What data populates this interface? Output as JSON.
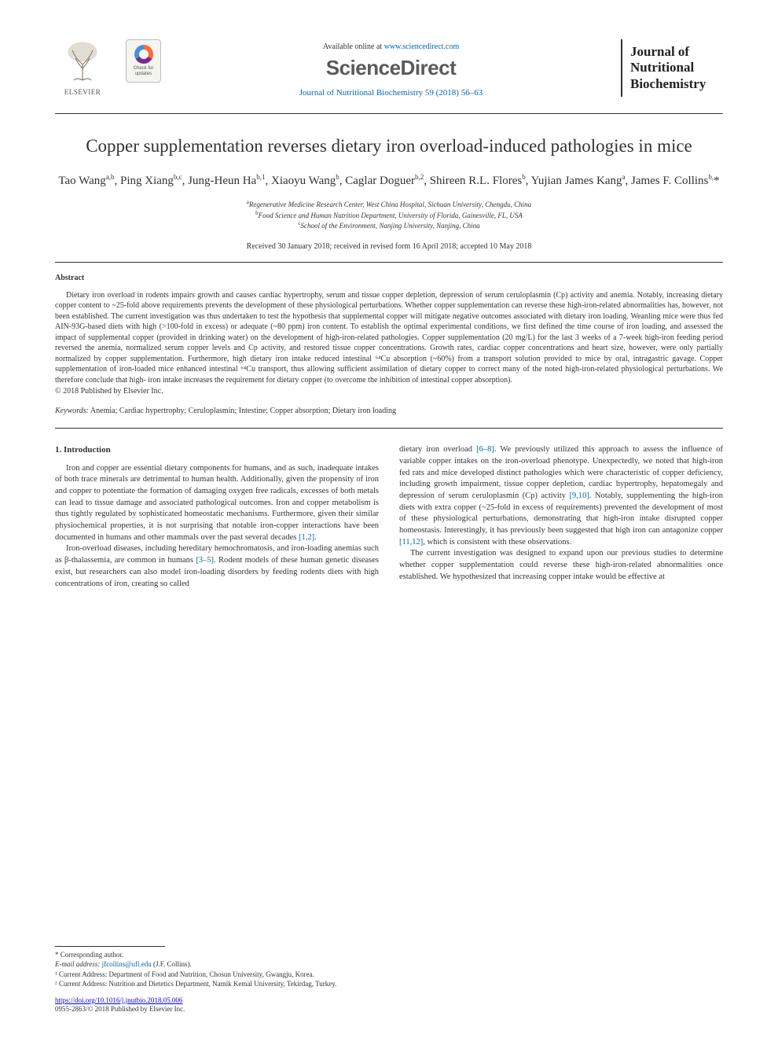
{
  "header": {
    "elsevier_label": "ELSEVIER",
    "check_updates_label": "Check for updates",
    "available_prefix": "Available online at ",
    "available_url": "www.sciencedirect.com",
    "sciencedirect_logo": "ScienceDirect",
    "journal_ref": "Journal of Nutritional Biochemistry 59 (2018) 56–63",
    "journal_box_line1": "Journal of",
    "journal_box_line2": "Nutritional",
    "journal_box_line3": "Biochemistry"
  },
  "title": "Copper supplementation reverses dietary iron overload-induced pathologies in mice",
  "authors_html": "Tao Wang<sup>a,b</sup>, Ping Xiang<sup>b,c</sup>, Jung-Heun Ha<sup>b,1</sup>, Xiaoyu Wang<sup>b</sup>, Caglar Doguer<sup>b,2</sup>, Shireen R.L. Flores<sup>b</sup>, Yujian James Kang<sup>a</sup>, James F. Collins<sup>b,</sup>*",
  "affiliations": {
    "a": "Regenerative Medicine Research Center, West China Hospital, Sichuan University, Chengdu, China",
    "b": "Food Science and Human Nutrition Department, University of Florida, Gainesville, FL, USA",
    "c": "School of the Environment, Nanjing University, Nanjing, China"
  },
  "dates": "Received 30 January 2018; received in revised form 16 April 2018; accepted 10 May 2018",
  "abstract": {
    "label": "Abstract",
    "text": "Dietary iron overload in rodents impairs growth and causes cardiac hypertrophy, serum and tissue copper depletion, depression of serum ceruloplasmin (Cp) activity and anemia. Notably, increasing dietary copper content to ~25-fold above requirements prevents the development of these physiological perturbations. Whether copper supplementation can reverse these high-iron-related abnormalities has, however, not been established. The current investigation was thus undertaken to test the hypothesis that supplemental copper will mitigate negative outcomes associated with dietary iron loading. Weanling mice were thus fed AIN-93G-based diets with high (>100-fold in excess) or adequate (~80 ppm) iron content. To establish the optimal experimental conditions, we first defined the time course of iron loading, and assessed the impact of supplemental copper (provided in drinking water) on the development of high-iron-related pathologies. Copper supplementation (20 mg/L) for the last 3 weeks of a 7-week high-iron feeding period reversed the anemia, normalized serum copper levels and Cp activity, and restored tissue copper concentrations. Growth rates, cardiac copper concentrations and heart size, however, were only partially normalized by copper supplementation. Furthermore, high dietary iron intake reduced intestinal ⁶⁴Cu absorption (~60%) from a transport solution provided to mice by oral, intragastric gavage. Copper supplementation of iron-loaded mice enhanced intestinal ⁶⁴Cu transport, thus allowing sufficient assimilation of dietary copper to correct many of the noted high-iron-related physiological perturbations. We therefore conclude that high- iron intake increases the requirement for dietary copper (to overcome the inhibition of intestinal copper absorption).",
    "copyright": "© 2018 Published by Elsevier Inc."
  },
  "keywords": {
    "label": "Keywords:",
    "text": "Anemia; Cardiac hypertrophy; Ceruloplasmin; Intestine; Copper absorption; Dietary iron loading"
  },
  "intro": {
    "heading": "1. Introduction",
    "col1_p1": "Iron and copper are essential dietary components for humans, and as such, inadequate intakes of both trace minerals are detrimental to human health. Additionally, given the propensity of iron and copper to potentiate the formation of damaging oxygen free radicals, excesses of both metals can lead to tissue damage and associated pathological outcomes. Iron and copper metabolism is thus tightly regulated by sophisticated homeostatic mechanisms. Furthermore, given their similar physiochemical properties, it is not surprising that notable iron-copper interactions have been documented in humans and other mammals over the past several decades ",
    "col1_p1_cite": "[1,2]",
    "col1_p1_end": ".",
    "col1_p2": "Iron-overload diseases, including hereditary hemochromatosis, and iron-loading anemias such as β-thalassemia, are common in humans ",
    "col1_p2_cite": "[3–5]",
    "col1_p2_end": ". Rodent models of these human genetic diseases exist, but researchers can also model iron-loading disorders by feeding rodents diets with high concentrations of iron, creating so called",
    "col2_p1a": "dietary iron overload ",
    "col2_p1_cite1": "[6–8]",
    "col2_p1b": ". We previously utilized this approach to assess the influence of variable copper intakes on the iron-overload phenotype. Unexpectedly, we noted that high-iron fed rats and mice developed distinct pathologies which were characteristic of copper deficiency, including growth impairment, tissue copper depletion, cardiac hypertrophy, hepatomegaly and depression of serum ceruloplasmin (Cp) activity ",
    "col2_p1_cite2": "[9,10]",
    "col2_p1c": ". Notably, supplementing the high-iron diets with extra copper (~25-fold in excess of requirements) prevented the development of most of these physiological perturbations, demonstrating that high-iron intake disrupted copper homeostasis. Interestingly, it has previously been suggested that high iron can antagonize copper ",
    "col2_p1_cite3": "[11,12]",
    "col2_p1d": ", which is consistent with these observations.",
    "col2_p2": "The current investigation was designed to expand upon our previous studies to determine whether copper supplementation could reverse these high-iron-related abnormalities once established. We hypothesized that increasing copper intake would be effective at"
  },
  "footnotes": {
    "corresponding": "* Corresponding author.",
    "email_label": "E-mail address:",
    "email": "jfcollins@ufl.edu",
    "email_who": "(J.F. Collins).",
    "note1": "¹ Current Address: Department of Food and Nutrition, Chosun University, Gwangju, Korea.",
    "note2": "² Current Address: Nutrition and Dietetics Department, Namik Kemal University, Tekirdag, Turkey."
  },
  "footer": {
    "doi": "https://doi.org/10.1016/j.jnutbio.2018.05.006",
    "issn_line": "0955-2863/© 2018 Published by Elsevier Inc."
  },
  "colors": {
    "link": "#0066b3",
    "text": "#333333",
    "elsevier_orange": "#e9711c"
  }
}
